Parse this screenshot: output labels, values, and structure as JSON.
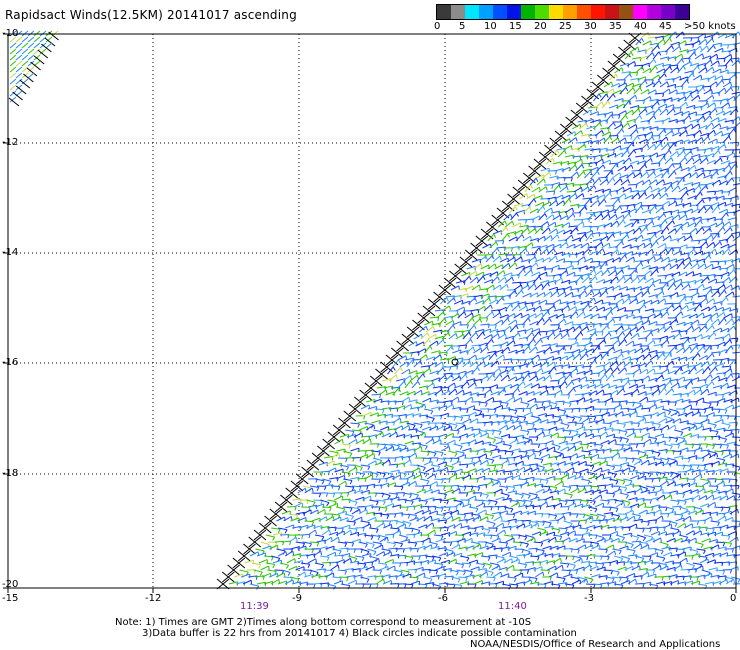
{
  "title": "Rapidsact Winds(12.5KM) 20141017 ascending",
  "legend": {
    "colors": [
      "#3a3a3a",
      "#8c8c8c",
      "#00e5ff",
      "#00a0ff",
      "#0050ff",
      "#0014e6",
      "#00b400",
      "#4cdc00",
      "#ffdc00",
      "#ffa000",
      "#ff5000",
      "#ff1400",
      "#c81414",
      "#965014",
      "#ff00ff",
      "#b400dc",
      "#7800c8",
      "#3c0096"
    ],
    "labels": [
      "0",
      "5",
      "10",
      "15",
      "20",
      "25",
      "30",
      "35",
      "40",
      "45",
      ">50 knots"
    ]
  },
  "axes": {
    "lat_labels": [
      "-10",
      "-12",
      "-14",
      "-16",
      "-18",
      "-20"
    ],
    "lon_labels": [
      "-15",
      "-12",
      "-9",
      "-6",
      "-3",
      "0"
    ],
    "time_labels": [
      "11:39",
      "11:40"
    ]
  },
  "notes": {
    "line1": "Note: 1) Times are GMT 2)Times along bottom correspond to measurement at -10S",
    "line2": "3)Data buffer is 22 hrs from 20141017 4) Black circles indicate possible contamination"
  },
  "credit": "NOAA/NESDIS/Office of Research and Applications"
}
